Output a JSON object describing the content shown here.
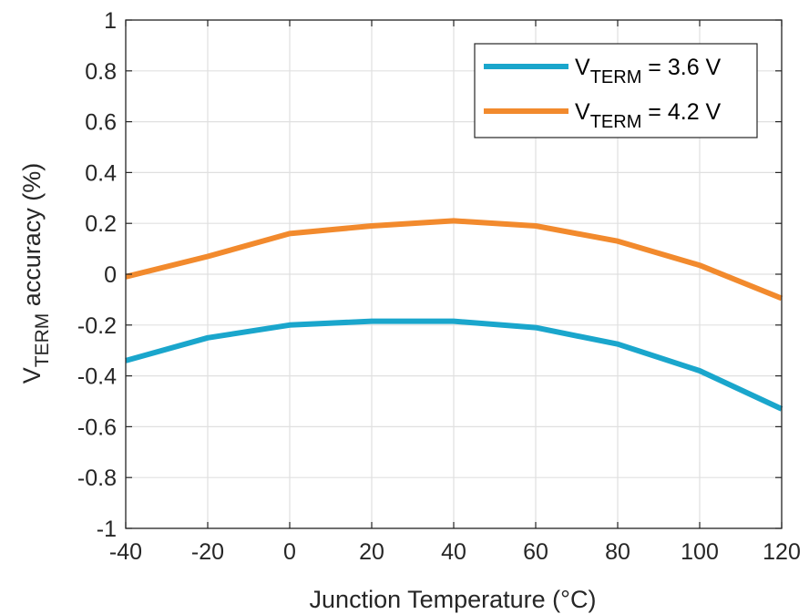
{
  "chart_data": {
    "type": "line",
    "x": [
      -40,
      -20,
      0,
      20,
      40,
      60,
      80,
      100,
      120
    ],
    "series": [
      {
        "name_main": "V",
        "name_sub": "TERM",
        "name_tail": " = 3.6 V",
        "color": "#1aa6cc",
        "values": [
          -0.34,
          -0.25,
          -0.2,
          -0.185,
          -0.185,
          -0.21,
          -0.275,
          -0.38,
          -0.53
        ]
      },
      {
        "name_main": "V",
        "name_sub": "TERM",
        "name_tail": " = 4.2 V",
        "color": "#f28a2d",
        "values": [
          -0.01,
          0.07,
          0.16,
          0.19,
          0.21,
          0.19,
          0.13,
          0.035,
          -0.095
        ]
      }
    ],
    "xlim": [
      -40,
      120
    ],
    "ylim": [
      -1,
      1
    ],
    "xticks": [
      "-40",
      "-20",
      "0",
      "20",
      "40",
      "60",
      "80",
      "100",
      "120"
    ],
    "yticks": [
      "1",
      "0.8",
      "0.6",
      "0.4",
      "0.2",
      "0",
      "-0.2",
      "-0.4",
      "-0.6",
      "-0.8",
      "-1"
    ],
    "xlabel": "Junction Temperature (°C)",
    "ylabel_main": "V",
    "ylabel_sub": "TERM",
    "ylabel_tail": " accuracy (%)",
    "grid": true,
    "legend_position": "top-right"
  }
}
